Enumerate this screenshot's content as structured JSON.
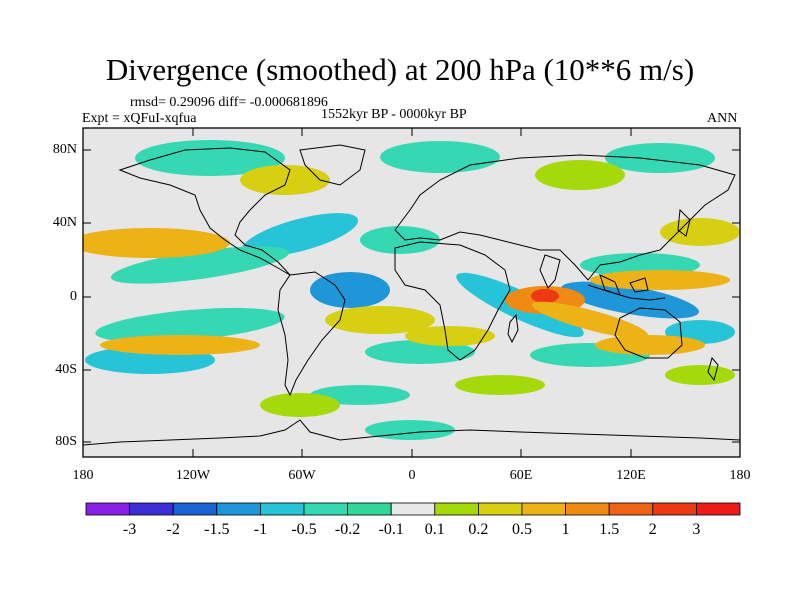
{
  "title": "Divergence (smoothed) at 200 hPa (10**6 m/s)",
  "stats": "rmsd= 0.29096 diff= -0.000681896",
  "experiment": "Expt = xQFuI-xqfua",
  "period": "1552kyr BP - 0000kyr BP",
  "season": "ANN",
  "axis": {
    "lat_labels": [
      "80N",
      "40N",
      "0",
      "40S",
      "80S"
    ],
    "lon_labels": [
      "180",
      "120W",
      "60W",
      "0",
      "60E",
      "120E",
      "180"
    ]
  },
  "colorbar": {
    "labels": [
      "-3",
      "-2",
      "-1.5",
      "-1",
      "-0.5",
      "-0.2",
      "-0.1",
      "0.1",
      "0.2",
      "0.5",
      "1",
      "1.5",
      "2",
      "3"
    ],
    "colors": [
      "#8a1fe6",
      "#3b2ed6",
      "#1b63d4",
      "#1f96d8",
      "#27c3d6",
      "#36d8b3",
      "#33d699",
      "#e8e8e8",
      "#a6d90a",
      "#d6cf12",
      "#ecb216",
      "#ef8a12",
      "#ef6414",
      "#eb3a12",
      "#ec1a1a"
    ]
  },
  "palette": {
    "ocean_background": "#e6e6e6",
    "coastline": "#000000"
  }
}
